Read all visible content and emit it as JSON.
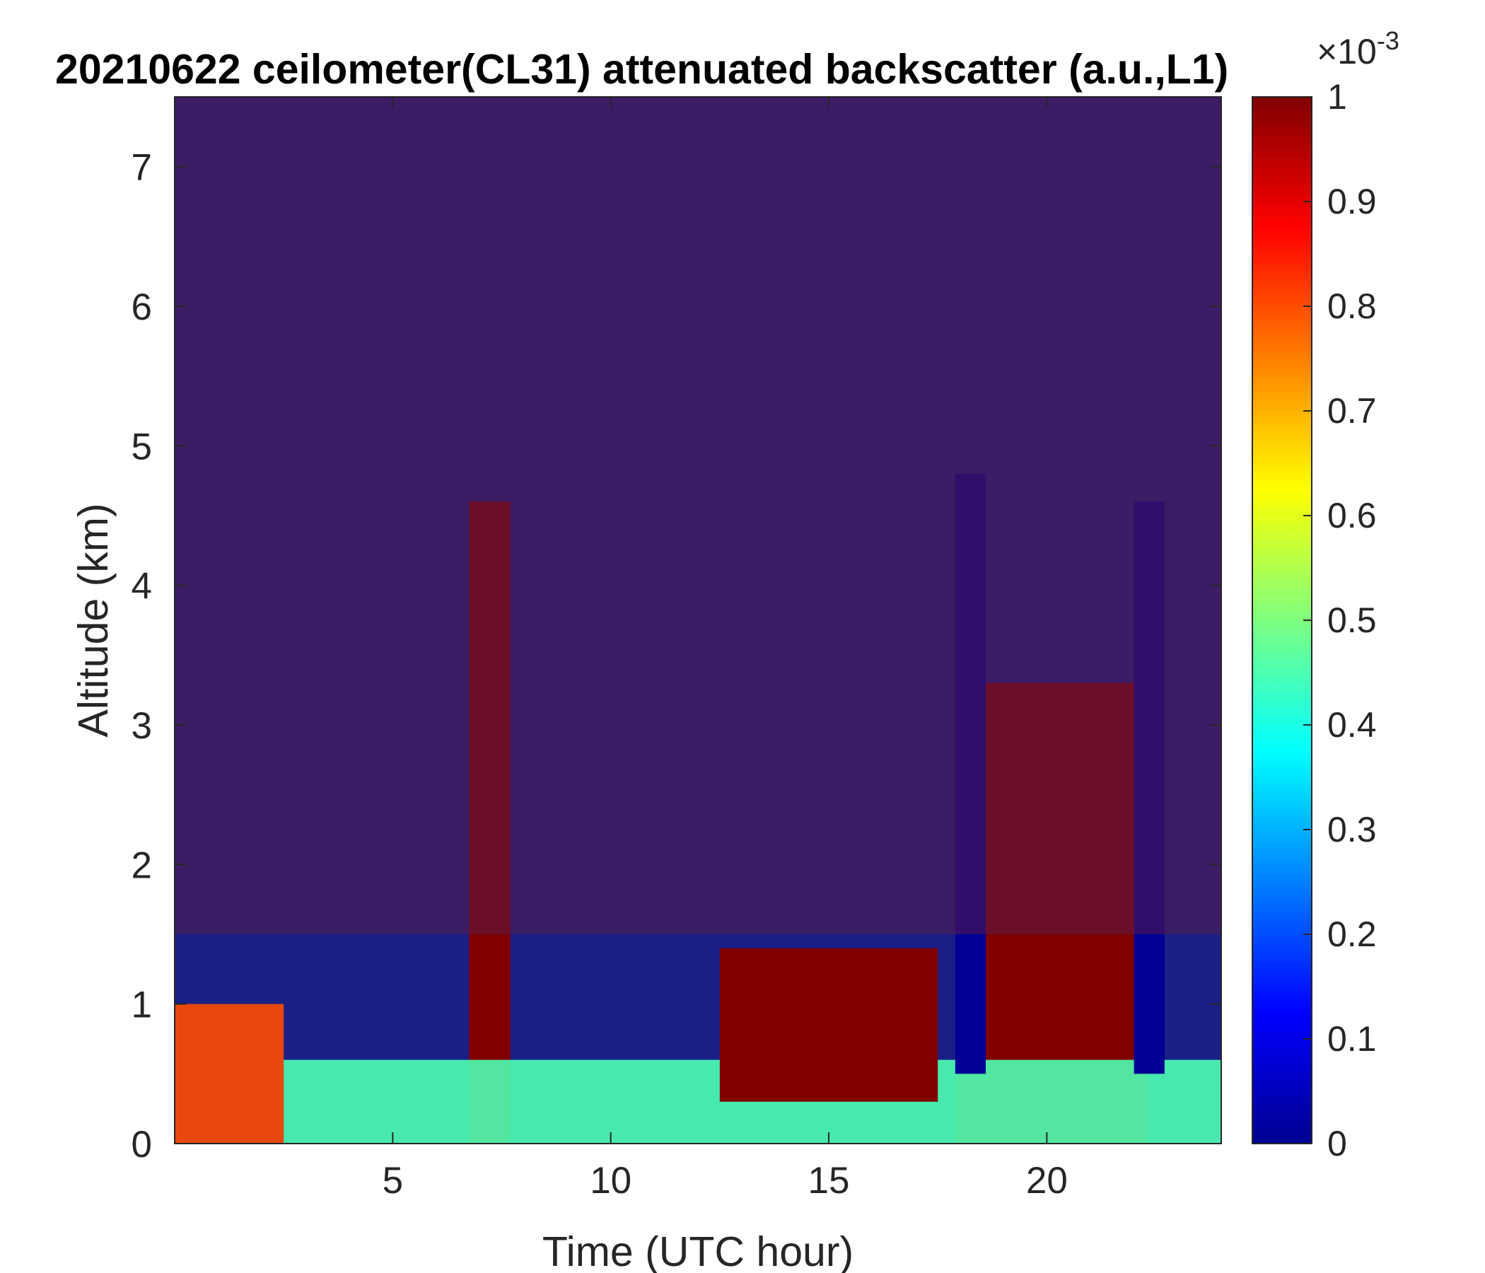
{
  "chart_data": {
    "type": "heatmap",
    "title": "20210622 ceilometer(CL31) attenuated backscatter (a.u.,L1)",
    "xlabel": "Time (UTC hour)",
    "ylabel": "Altitude (km)",
    "xlim": [
      0,
      24
    ],
    "ylim": [
      0,
      7.5
    ],
    "xticks": [
      5,
      10,
      15,
      20
    ],
    "yticks": [
      0,
      1,
      2,
      3,
      4,
      5,
      6,
      7
    ],
    "colorbar": {
      "range": [
        0,
        1
      ],
      "ticks": [
        0,
        0.1,
        0.2,
        0.3,
        0.4,
        0.5,
        0.6,
        0.7,
        0.8,
        0.9,
        1
      ],
      "exponent_base": "×10",
      "exponent": "-3",
      "colormap": "jet"
    },
    "features": [
      {
        "kind": "cloud_column",
        "t0": 6.75,
        "t1": 7.7,
        "z0": 0,
        "z1": 4.6,
        "value": 1.0
      },
      {
        "kind": "cloud_column",
        "t0": 17.9,
        "t1": 22.3,
        "z0": 0,
        "z1": 3.3,
        "value": 1.0
      },
      {
        "kind": "boundary_layer",
        "t0": 0,
        "t1": 2.5,
        "z0": 0,
        "z1": 1.0,
        "value": 0.8
      },
      {
        "kind": "boundary_layer",
        "t0": 2.5,
        "t1": 24,
        "z0": 0,
        "z1": 0.6,
        "value": 0.45
      },
      {
        "kind": "plume",
        "t0": 12.5,
        "t1": 17.5,
        "z0": 0.3,
        "z1": 1.4,
        "value": 1.0
      },
      {
        "kind": "clear_gap",
        "t0": 17.9,
        "t1": 18.6,
        "z0": 0.5,
        "z1": 4.8,
        "value": 0.02
      },
      {
        "kind": "clear_gap",
        "t0": 22.0,
        "t1": 22.7,
        "z0": 0.5,
        "z1": 4.6,
        "value": 0.02
      },
      {
        "kind": "noise_floor",
        "t0": 0,
        "t1": 24,
        "z0": 1.5,
        "z1": 7.5,
        "value": 0.5
      }
    ]
  }
}
